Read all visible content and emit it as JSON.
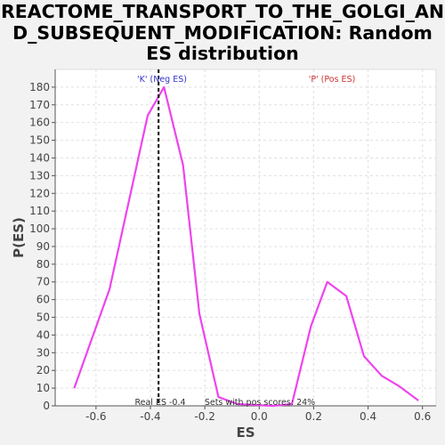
{
  "chart_data": {
    "type": "line",
    "title_lines": [
      "REACTOME_TRANSPORT_TO_THE_GOLGI_AN",
      "D_SUBSEQUENT_MODIFICATION: Random",
      "ES distribution"
    ],
    "xlabel": "ES",
    "ylabel": "P(ES)",
    "xlim": [
      -0.75,
      0.65
    ],
    "ylim": [
      0,
      190
    ],
    "x_ticks": [
      "-0.6",
      "-0.4",
      "-0.2",
      "0.0",
      "0.2",
      "0.4",
      "0.6"
    ],
    "x_tick_values": [
      -0.6,
      -0.4,
      -0.2,
      0.0,
      0.2,
      0.4,
      0.6
    ],
    "y_ticks": [
      0,
      10,
      20,
      30,
      40,
      50,
      60,
      70,
      80,
      90,
      100,
      110,
      120,
      130,
      140,
      150,
      160,
      170,
      180
    ],
    "grid": true,
    "series": [
      {
        "color": "#ee44ee",
        "x": [
          -0.68,
          -0.55,
          -0.48,
          -0.41,
          -0.35,
          -0.28,
          -0.22,
          -0.15,
          -0.08,
          0.05,
          0.12,
          0.19,
          0.25,
          0.32,
          0.385,
          0.45,
          0.515,
          0.585
        ],
        "y": [
          10,
          66,
          115,
          164,
          180,
          136,
          52,
          5,
          1,
          0,
          1,
          45,
          70,
          62,
          28,
          17,
          11,
          3
        ]
      }
    ],
    "real_es": {
      "x": -0.37,
      "label": "Real ES -0.4"
    },
    "annotations": {
      "neg_label": "'K' (Neg ES)",
      "neg_color": "#3333cc",
      "pos_label": "'P' (Pos ES)",
      "pos_color": "#cc3333",
      "pos_scores": "Sets with pos scores: 24%"
    }
  }
}
